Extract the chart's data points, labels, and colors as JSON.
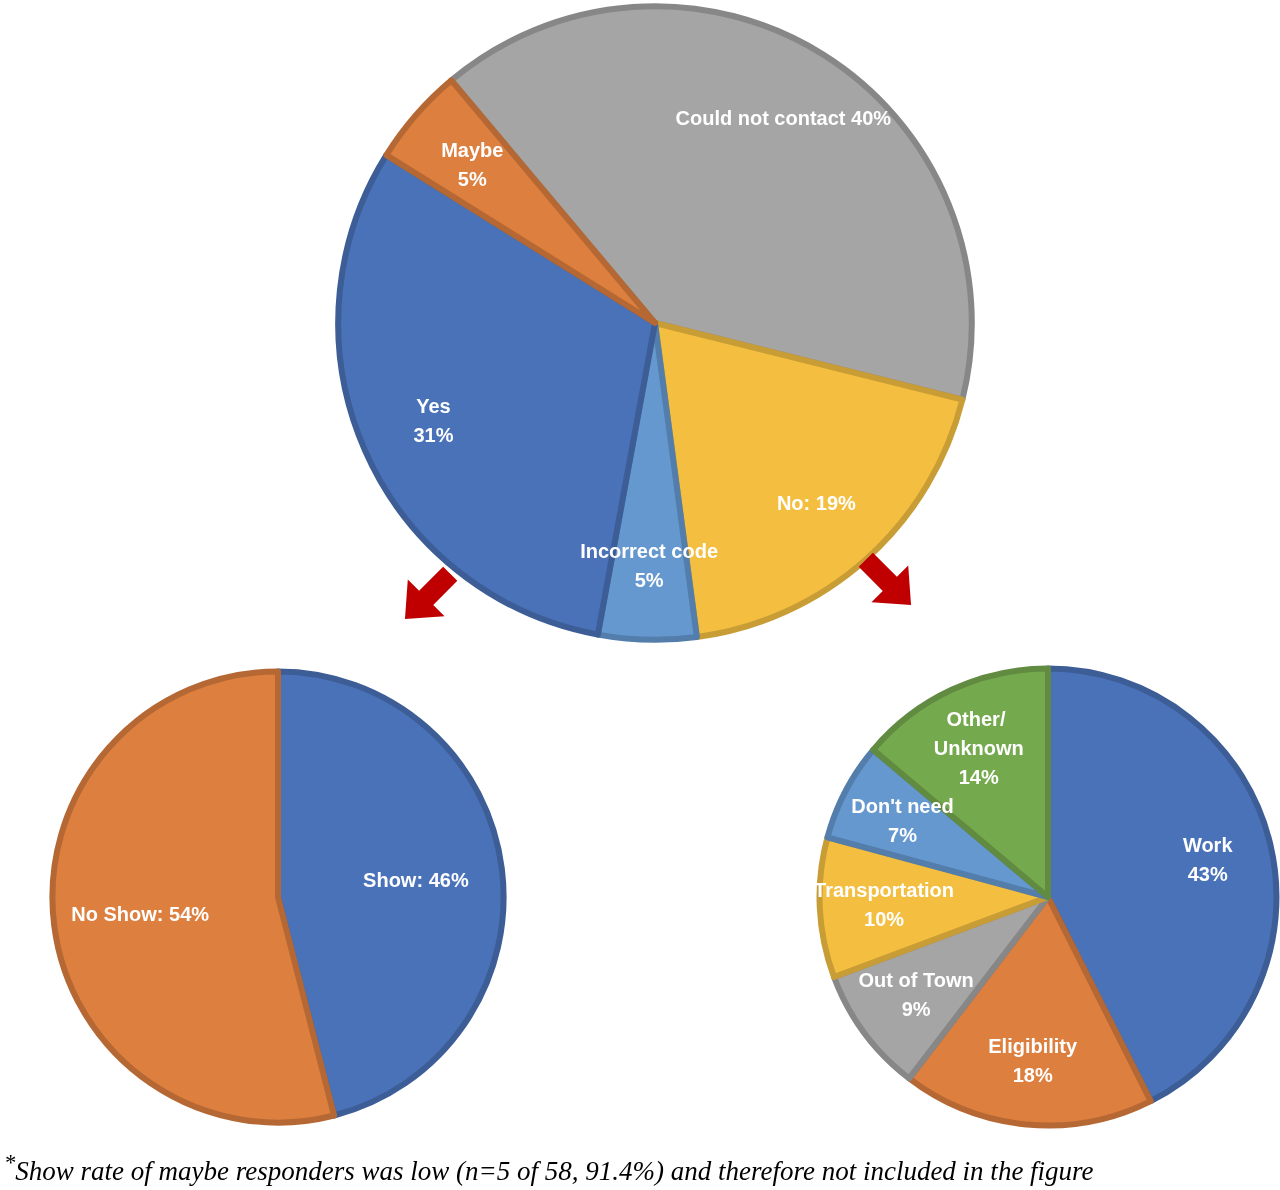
{
  "chart_data": [
    {
      "type": "pie",
      "categories": [
        "Could not contact",
        "No",
        "Incorrect code",
        "Yes",
        "Maybe"
      ],
      "values": [
        40,
        19,
        5,
        31,
        5
      ],
      "colors": [
        "#a5a5a5",
        "#f4bf41",
        "#6598cf",
        "#4a72b8",
        "#dd7f3e"
      ],
      "value_labels": [
        "40%",
        "19%",
        "5%",
        "31%",
        "5%"
      ],
      "annotations": [
        "$^{*}$Show rate of maybe responders was low (n=5 of 58, 91.4%) and therefore not included in the figure"
      ]
    },
    {
      "type": "pie",
      "categories": [
        "Show",
        "No Show"
      ],
      "values": [
        46,
        54
      ],
      "colors": [
        "#4a72b8",
        "#dd7f3e"
      ],
      "value_labels": [
        "46%",
        "54%"
      ]
    },
    {
      "type": "pie",
      "categories": [
        "Work",
        "Eligibility",
        "Out of Town",
        "Transportation",
        "Don't need",
        "Other/ Unknown"
      ],
      "values": [
        43,
        18,
        9,
        10,
        7,
        14
      ],
      "colors": [
        "#4a72b8",
        "#dd7f3e",
        "#a5a5a5",
        "#f4bf41",
        "#6598cf",
        "#75a94e"
      ],
      "value_labels": [
        "43%",
        "18%",
        "9%",
        "10%",
        "7%",
        "14%"
      ]
    }
  ]
}
